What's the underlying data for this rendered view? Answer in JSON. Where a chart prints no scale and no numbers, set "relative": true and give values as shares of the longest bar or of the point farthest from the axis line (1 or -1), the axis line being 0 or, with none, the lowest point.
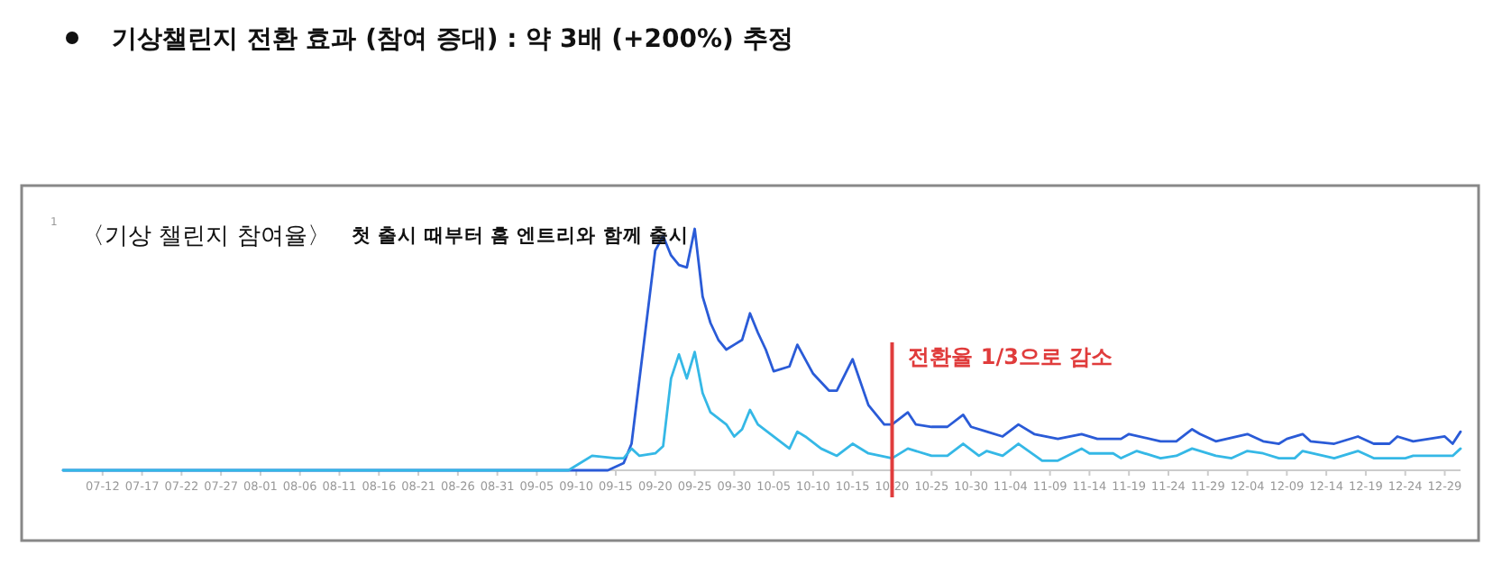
{
  "chart_data": {
    "type": "line",
    "title": "기상챌린지 전환 효과 (참여 증대) : 약 3배 (+200%) 추정",
    "subtitle": "〈기상 챌린지 참여율〉",
    "annotations": [
      "1",
      "첫 출시 때부터 홈 엔트리와 함께 출시"
    ],
    "relative": true,
    "line_style": "solid",
    "xlim": [
      "--07-07",
      "--12-31"
    ],
    "xticks": [
      {
        "value": "--07-12",
        "label": "07-12"
      },
      {
        "value": "--07-17",
        "label": "07-17"
      },
      {
        "value": "--07-22",
        "label": "07-22"
      },
      {
        "value": "--07-27",
        "label": "07-27"
      },
      {
        "value": "--08-01",
        "label": "08-01"
      },
      {
        "value": "--08-06",
        "label": "08-06"
      },
      {
        "value": "--08-11",
        "label": "08-11"
      },
      {
        "value": "--08-16",
        "label": "08-16"
      },
      {
        "value": "--08-21",
        "label": "08-21"
      },
      {
        "value": "--08-26",
        "label": "08-26"
      },
      {
        "value": "--08-31",
        "label": "08-31"
      },
      {
        "value": "--09-05",
        "label": "09-05"
      },
      {
        "value": "--09-10",
        "label": "09-10"
      },
      {
        "value": "--09-15",
        "label": "09-15"
      },
      {
        "value": "--09-20",
        "label": "09-20"
      },
      {
        "value": "--09-25",
        "label": "09-25"
      },
      {
        "value": "--09-30",
        "label": "09-30"
      },
      {
        "value": "--10-05",
        "label": "10-05"
      },
      {
        "value": "--10-10",
        "label": "10-10"
      },
      {
        "value": "--10-15",
        "label": "10-15"
      },
      {
        "value": "--10-20",
        "label": "10-20"
      },
      {
        "value": "--10-25",
        "label": "10-25"
      },
      {
        "value": "--10-30",
        "label": "10-30"
      },
      {
        "value": "--11-04",
        "label": "11-04"
      },
      {
        "value": "--11-09",
        "label": "11-09"
      },
      {
        "value": "--11-14",
        "label": "11-14"
      },
      {
        "value": "--11-19",
        "label": "11-19"
      },
      {
        "value": "--11-24",
        "label": "11-24"
      },
      {
        "value": "--11-29",
        "label": "11-29"
      },
      {
        "value": "--12-04",
        "label": "12-04"
      },
      {
        "value": "--12-09",
        "label": "12-09"
      },
      {
        "value": "--12-14",
        "label": "12-14"
      },
      {
        "value": "--12-19",
        "label": "12-19"
      },
      {
        "value": "--12-24",
        "label": "12-24"
      },
      {
        "value": "--12-29",
        "label": "12-29"
      }
    ],
    "ref_lines": [
      {
        "axis": "x",
        "value": "--10-20",
        "label": "전환율 1/3으로 감소",
        "color": "#e03c3c"
      }
    ],
    "series": [
      {
        "color": "#2a5bd7",
        "x": [
          "--07-07",
          "--09-14",
          "--09-16",
          "--09-17",
          "--09-20",
          "--09-21",
          "--09-22",
          "--09-23",
          "--09-24",
          "--09-25",
          "--09-26",
          "--09-27",
          "--09-28",
          "--09-29",
          "--09-30",
          "--10-01",
          "--10-02",
          "--10-03",
          "--10-04",
          "--10-05",
          "--10-07",
          "--10-08",
          "--10-10",
          "--10-12",
          "--10-13",
          "--10-15",
          "--10-17",
          "--10-19",
          "--10-20",
          "--10-22",
          "--10-23",
          "--10-25",
          "--10-27",
          "--10-29",
          "--10-30",
          "--11-01",
          "--11-03",
          "--11-05",
          "--11-07",
          "--11-10",
          "--11-13",
          "--11-15",
          "--11-18",
          "--11-19",
          "--11-23",
          "--11-25",
          "--11-27",
          "--11-28",
          "--11-30",
          "--12-04",
          "--12-06",
          "--12-08",
          "--12-09",
          "--12-11",
          "--12-12",
          "--12-15",
          "--12-18",
          "--12-20",
          "--12-22",
          "--12-23",
          "--12-25",
          "--12-29",
          "--12-30",
          "--12-31"
        ],
        "values": [
          0,
          0,
          0.03,
          0.11,
          0.91,
          0.97,
          0.89,
          0.85,
          0.84,
          1,
          0.72,
          0.61,
          0.54,
          0.5,
          0.52,
          0.54,
          0.65,
          0.57,
          0.5,
          0.41,
          0.43,
          0.52,
          0.4,
          0.33,
          0.33,
          0.46,
          0.27,
          0.19,
          0.19,
          0.24,
          0.19,
          0.18,
          0.18,
          0.23,
          0.18,
          0.16,
          0.14,
          0.19,
          0.15,
          0.13,
          0.15,
          0.13,
          0.13,
          0.15,
          0.12,
          0.12,
          0.17,
          0.15,
          0.12,
          0.15,
          0.12,
          0.11,
          0.13,
          0.15,
          0.12,
          0.11,
          0.14,
          0.11,
          0.11,
          0.14,
          0.12,
          0.14,
          0.11,
          0.16
        ]
      },
      {
        "color": "#35b8e6",
        "x": [
          "--07-07",
          "--09-09",
          "--09-12",
          "--09-15",
          "--09-16",
          "--09-17",
          "--09-18",
          "--09-20",
          "--09-21",
          "--09-22",
          "--09-23",
          "--09-24",
          "--09-25",
          "--09-26",
          "--09-27",
          "--09-29",
          "--09-30",
          "--10-01",
          "--10-02",
          "--10-03",
          "--10-07",
          "--10-08",
          "--10-09",
          "--10-11",
          "--10-13",
          "--10-15",
          "--10-17",
          "--10-20",
          "--10-22",
          "--10-25",
          "--10-27",
          "--10-29",
          "--10-31",
          "--11-01",
          "--11-03",
          "--11-05",
          "--11-08",
          "--11-10",
          "--11-13",
          "--11-14",
          "--11-17",
          "--11-18",
          "--11-20",
          "--11-23",
          "--11-25",
          "--11-27",
          "--11-30",
          "--12-02",
          "--12-04",
          "--12-06",
          "--12-08",
          "--12-10",
          "--12-11",
          "--12-15",
          "--12-18",
          "--12-20",
          "--12-24",
          "--12-25",
          "--12-30",
          "--12-31"
        ],
        "values": [
          0,
          0,
          0.06,
          0.05,
          0.05,
          0.09,
          0.06,
          0.07,
          0.1,
          0.38,
          0.48,
          0.38,
          0.49,
          0.32,
          0.24,
          0.19,
          0.14,
          0.17,
          0.25,
          0.19,
          0.09,
          0.16,
          0.14,
          0.09,
          0.06,
          0.11,
          0.07,
          0.05,
          0.09,
          0.06,
          0.06,
          0.11,
          0.06,
          0.08,
          0.06,
          0.11,
          0.04,
          0.04,
          0.09,
          0.07,
          0.07,
          0.05,
          0.08,
          0.05,
          0.06,
          0.09,
          0.06,
          0.05,
          0.08,
          0.07,
          0.05,
          0.05,
          0.08,
          0.05,
          0.08,
          0.05,
          0.05,
          0.06,
          0.06,
          0.09
        ]
      }
    ]
  }
}
